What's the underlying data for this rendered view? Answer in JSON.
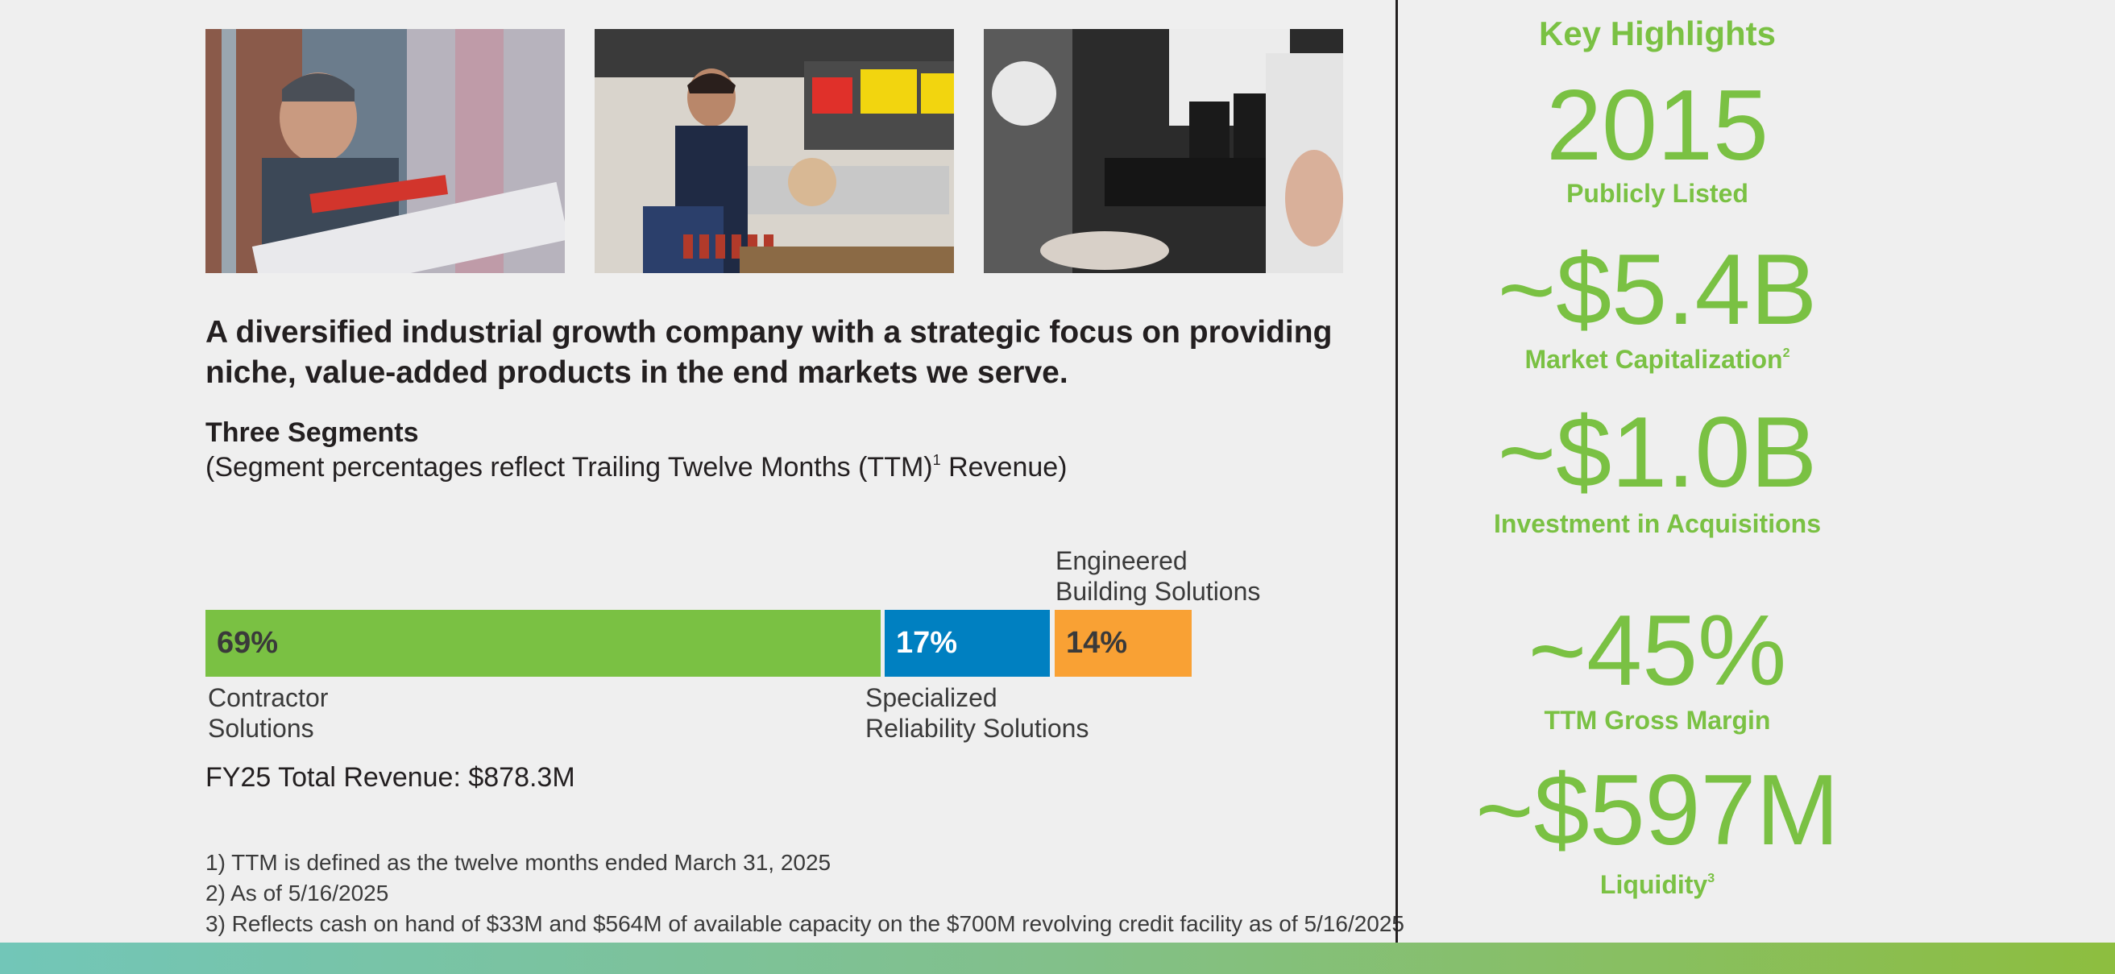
{
  "headline": "A diversified industrial growth company with a strategic focus on providing niche, value-added products in the end markets we serve.",
  "segments": {
    "title": "Three Segments",
    "subtitle": "(Segment percentages reflect Trailing Twelve Months (TTM)",
    "subtitle_sup": "1",
    "subtitle_end": " Revenue)",
    "items": [
      {
        "label": "Contractor\nSolutions",
        "percent_text": "69%",
        "share": 0.69,
        "color": "#7ac143"
      },
      {
        "label": "Specialized\nReliability Solutions",
        "percent_text": "17%",
        "share": 0.17,
        "color": "#0080c1"
      },
      {
        "label": "Engineered\nBuilding Solutions",
        "percent_text": "14%",
        "share": 0.14,
        "color": "#f9a134"
      }
    ],
    "total_revenue": "FY25 Total Revenue: $878.3M"
  },
  "footnotes": [
    "1) TTM is defined as the twelve months ended March 31, 2025",
    "2) As of 5/16/2025",
    "3) Reflects cash on hand of $33M and $564M of available capacity on the $700M revolving credit facility as of 5/16/2025"
  ],
  "key_highlights": {
    "title": "Key Highlights",
    "items": [
      {
        "value": "2015",
        "label": "Publicly Listed",
        "sup": ""
      },
      {
        "value": "~$5.4B",
        "label": "Market Capitalization",
        "sup": "2"
      },
      {
        "value": "~$1.0B",
        "label": "Investment in Acquisitions",
        "sup": ""
      },
      {
        "value": "~45%",
        "label": "TTM Gross Margin",
        "sup": ""
      },
      {
        "value": "~$597M",
        "label": "Liquidity",
        "sup": "3"
      }
    ]
  },
  "photos": [
    {
      "icon": "worker-with-pipe-wrench-photo"
    },
    {
      "icon": "worker-in-warehouse-photo"
    },
    {
      "icon": "microscope-photo"
    }
  ],
  "colors": {
    "accent_green": "#7ac143",
    "blue": "#0080c1",
    "orange": "#f9a134",
    "text": "#231f20"
  }
}
